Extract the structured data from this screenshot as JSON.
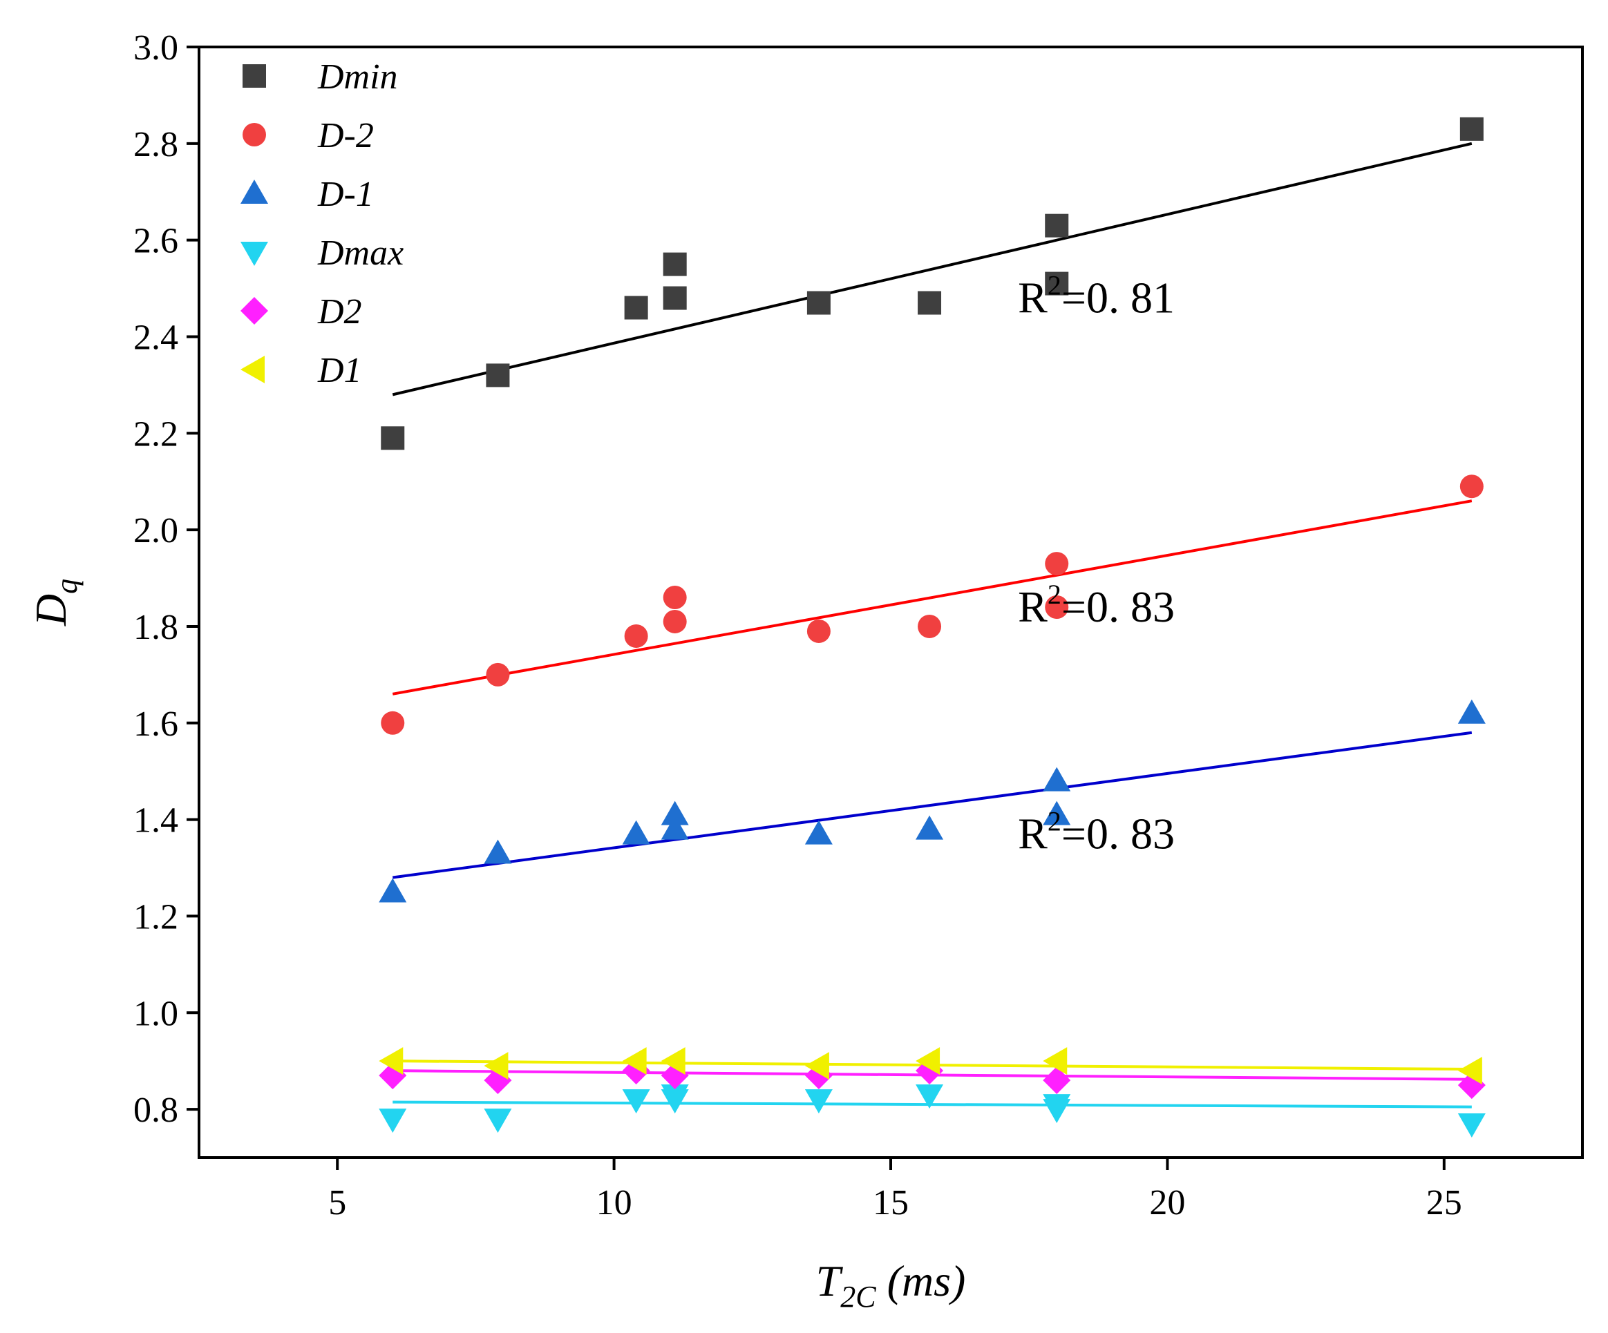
{
  "chart_data": {
    "type": "scatter",
    "xlabel": "T",
    "xlabel_sub": "2C",
    "xlabel_unit": " (ms)",
    "ylabel": "D",
    "ylabel_sub": "q",
    "xlim": [
      2.5,
      27.5
    ],
    "ylim": [
      0.7,
      3.0
    ],
    "xticks": [
      "5",
      "10",
      "15",
      "20",
      "25"
    ],
    "yticks": [
      "0.8",
      "1.0",
      "1.2",
      "1.4",
      "1.6",
      "1.8",
      "2.0",
      "2.2",
      "2.4",
      "2.6",
      "2.8",
      "3.0"
    ],
    "legend_position": "top-left",
    "series": [
      {
        "name": "Dmin",
        "marker": "square",
        "color": "#3f3f3f",
        "line_color": "#000000",
        "points": [
          [
            6.0,
            2.19
          ],
          [
            7.9,
            2.32
          ],
          [
            10.4,
            2.46
          ],
          [
            11.1,
            2.48
          ],
          [
            11.1,
            2.55
          ],
          [
            13.7,
            2.47
          ],
          [
            15.7,
            2.47
          ],
          [
            18.0,
            2.51
          ],
          [
            18.0,
            2.63
          ],
          [
            25.5,
            2.83
          ]
        ],
        "fit": [
          [
            6.0,
            2.28
          ],
          [
            25.5,
            2.8
          ]
        ]
      },
      {
        "name": "D-2",
        "marker": "circle",
        "color": "#f04040",
        "line_color": "#ff0000",
        "points": [
          [
            6.0,
            1.6
          ],
          [
            7.9,
            1.7
          ],
          [
            10.4,
            1.78
          ],
          [
            11.1,
            1.81
          ],
          [
            11.1,
            1.86
          ],
          [
            13.7,
            1.79
          ],
          [
            15.7,
            1.8
          ],
          [
            18.0,
            1.84
          ],
          [
            18.0,
            1.93
          ],
          [
            25.5,
            2.09
          ]
        ],
        "fit": [
          [
            6.0,
            1.66
          ],
          [
            25.5,
            2.06
          ]
        ]
      },
      {
        "name": "D-1",
        "marker": "triangle-up",
        "color": "#1f6fd0",
        "line_color": "#0000cc",
        "points": [
          [
            6.0,
            1.25
          ],
          [
            7.9,
            1.33
          ],
          [
            10.4,
            1.37
          ],
          [
            11.1,
            1.38
          ],
          [
            11.1,
            1.41
          ],
          [
            13.7,
            1.37
          ],
          [
            15.7,
            1.38
          ],
          [
            18.0,
            1.41
          ],
          [
            18.0,
            1.48
          ],
          [
            25.5,
            1.62
          ]
        ],
        "fit": [
          [
            6.0,
            1.28
          ],
          [
            25.5,
            1.58
          ]
        ]
      },
      {
        "name": "Dmax",
        "marker": "triangle-down",
        "color": "#22d4f0",
        "line_color": "#22d4f0",
        "points": [
          [
            6.0,
            0.78
          ],
          [
            7.9,
            0.78
          ],
          [
            10.4,
            0.82
          ],
          [
            11.1,
            0.82
          ],
          [
            11.1,
            0.83
          ],
          [
            13.7,
            0.82
          ],
          [
            15.7,
            0.83
          ],
          [
            18.0,
            0.81
          ],
          [
            18.0,
            0.8
          ],
          [
            25.5,
            0.77
          ]
        ],
        "fit": [
          [
            6.0,
            0.815
          ],
          [
            25.5,
            0.805
          ]
        ]
      },
      {
        "name": "D2",
        "marker": "diamond",
        "color": "#ff20ff",
        "line_color": "#ff20ff",
        "points": [
          [
            6.0,
            0.87
          ],
          [
            7.9,
            0.86
          ],
          [
            10.4,
            0.88
          ],
          [
            11.1,
            0.87
          ],
          [
            13.7,
            0.87
          ],
          [
            15.7,
            0.88
          ],
          [
            18.0,
            0.86
          ],
          [
            25.5,
            0.85
          ]
        ],
        "fit": [
          [
            6.0,
            0.88
          ],
          [
            25.5,
            0.862
          ]
        ]
      },
      {
        "name": "D1",
        "marker": "triangle-left",
        "color": "#f0f000",
        "line_color": "#f0f000",
        "points": [
          [
            6.0,
            0.9
          ],
          [
            7.9,
            0.89
          ],
          [
            10.4,
            0.9
          ],
          [
            11.1,
            0.9
          ],
          [
            13.7,
            0.89
          ],
          [
            15.7,
            0.9
          ],
          [
            18.0,
            0.9
          ],
          [
            25.5,
            0.88
          ]
        ],
        "fit": [
          [
            6.0,
            0.9
          ],
          [
            25.5,
            0.883
          ]
        ]
      }
    ],
    "annotations": [
      {
        "prefix": "R",
        "sup": "2",
        "rest": "=0. 81",
        "x": 17.3,
        "y": 2.45
      },
      {
        "prefix": "R",
        "sup": "2",
        "rest": "=0. 83",
        "x": 17.3,
        "y": 1.81
      },
      {
        "prefix": "R",
        "sup": "2",
        "rest": "=0. 83",
        "x": 17.3,
        "y": 1.34
      }
    ]
  }
}
